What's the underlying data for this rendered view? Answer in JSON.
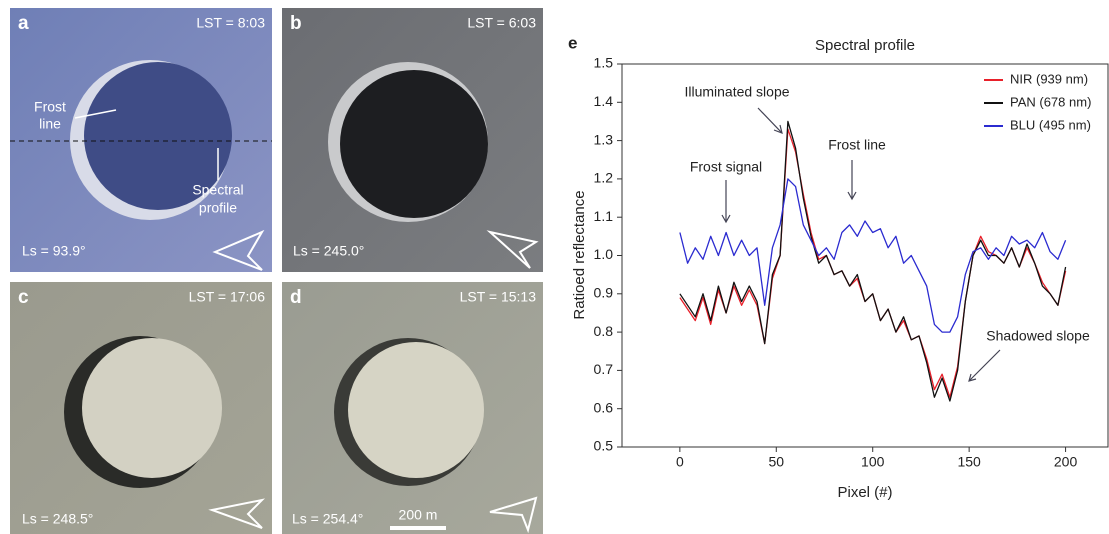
{
  "panels": [
    {
      "letter": "a",
      "time": "LST = 8:03",
      "ls": "Ls = 93.9°",
      "frost_line": [
        "Frost",
        "line"
      ],
      "spectral_profile": [
        "Spectral",
        "profile"
      ]
    },
    {
      "letter": "b",
      "time": "LST = 6:03",
      "ls": "Ls = 245.0°"
    },
    {
      "letter": "c",
      "time": "LST = 17:06",
      "ls": "Ls = 248.5°"
    },
    {
      "letter": "d",
      "time": "LST = 15:13",
      "ls": "Ls = 254.4°",
      "scale": "200 m"
    }
  ],
  "chart_data": {
    "type": "line",
    "panel_letter": "e",
    "title": "Spectral profile",
    "x_label": "Pixel (#)",
    "y_label": "Ratioed reflectance",
    "x": [
      0,
      4,
      8,
      12,
      16,
      20,
      24,
      28,
      32,
      36,
      40,
      44,
      48,
      52,
      56,
      60,
      64,
      68,
      72,
      76,
      80,
      84,
      88,
      92,
      96,
      100,
      104,
      108,
      112,
      116,
      120,
      124,
      128,
      132,
      136,
      140,
      144,
      148,
      152,
      156,
      160,
      164,
      168,
      172,
      176,
      180,
      184,
      188,
      192,
      196,
      200
    ],
    "series": [
      {
        "name": "NIR (939 nm)",
        "color": "#e8202a",
        "values": [
          0.89,
          0.86,
          0.83,
          0.89,
          0.82,
          0.91,
          0.85,
          0.92,
          0.87,
          0.91,
          0.87,
          0.77,
          0.94,
          1.0,
          1.33,
          1.27,
          1.16,
          1.06,
          0.99,
          1.0,
          0.95,
          0.96,
          0.92,
          0.94,
          0.88,
          0.9,
          0.83,
          0.86,
          0.8,
          0.83,
          0.78,
          0.79,
          0.73,
          0.65,
          0.69,
          0.63,
          0.71,
          0.88,
          1.0,
          1.05,
          1.01,
          1.0,
          0.98,
          1.02,
          0.97,
          1.02,
          0.98,
          0.93,
          0.9,
          0.87,
          0.96
        ]
      },
      {
        "name": "PAN (678 nm)",
        "color": "#111111",
        "values": [
          0.9,
          0.87,
          0.84,
          0.9,
          0.83,
          0.92,
          0.85,
          0.93,
          0.88,
          0.92,
          0.88,
          0.77,
          0.95,
          1.0,
          1.35,
          1.28,
          1.15,
          1.05,
          0.98,
          1.0,
          0.95,
          0.96,
          0.92,
          0.95,
          0.88,
          0.9,
          0.83,
          0.86,
          0.8,
          0.84,
          0.78,
          0.79,
          0.72,
          0.63,
          0.68,
          0.62,
          0.7,
          0.88,
          1.0,
          1.04,
          1.0,
          1.0,
          0.98,
          1.02,
          0.97,
          1.03,
          0.98,
          0.92,
          0.9,
          0.87,
          0.97
        ]
      },
      {
        "name": "BLU (495 nm)",
        "color": "#2b2bd0",
        "values": [
          1.06,
          0.98,
          1.02,
          0.99,
          1.05,
          1.0,
          1.06,
          1.0,
          1.04,
          1.0,
          1.02,
          0.87,
          1.02,
          1.08,
          1.2,
          1.18,
          1.08,
          1.04,
          1.0,
          1.02,
          0.99,
          1.06,
          1.08,
          1.05,
          1.09,
          1.06,
          1.07,
          1.02,
          1.05,
          0.98,
          1.0,
          0.96,
          0.92,
          0.82,
          0.8,
          0.8,
          0.84,
          0.95,
          1.01,
          1.02,
          0.99,
          1.02,
          1.0,
          1.05,
          1.03,
          1.04,
          1.02,
          1.06,
          1.01,
          0.99,
          1.04
        ]
      }
    ],
    "annotations": [
      "Illuminated slope",
      "Frost signal",
      "Frost line",
      "Shadowed slope"
    ],
    "xlim": [
      -30,
      222
    ],
    "ylim": [
      0.5,
      1.5
    ],
    "xticks": [
      0,
      50,
      100,
      150,
      200
    ],
    "yticks": [
      0.5,
      0.6,
      0.7,
      0.8,
      0.9,
      {
        "value": 1,
        "label": "1.0"
      },
      1.1,
      1.2,
      1.3,
      1.4,
      1.5
    ],
    "legend": "upper right",
    "grid": false
  }
}
